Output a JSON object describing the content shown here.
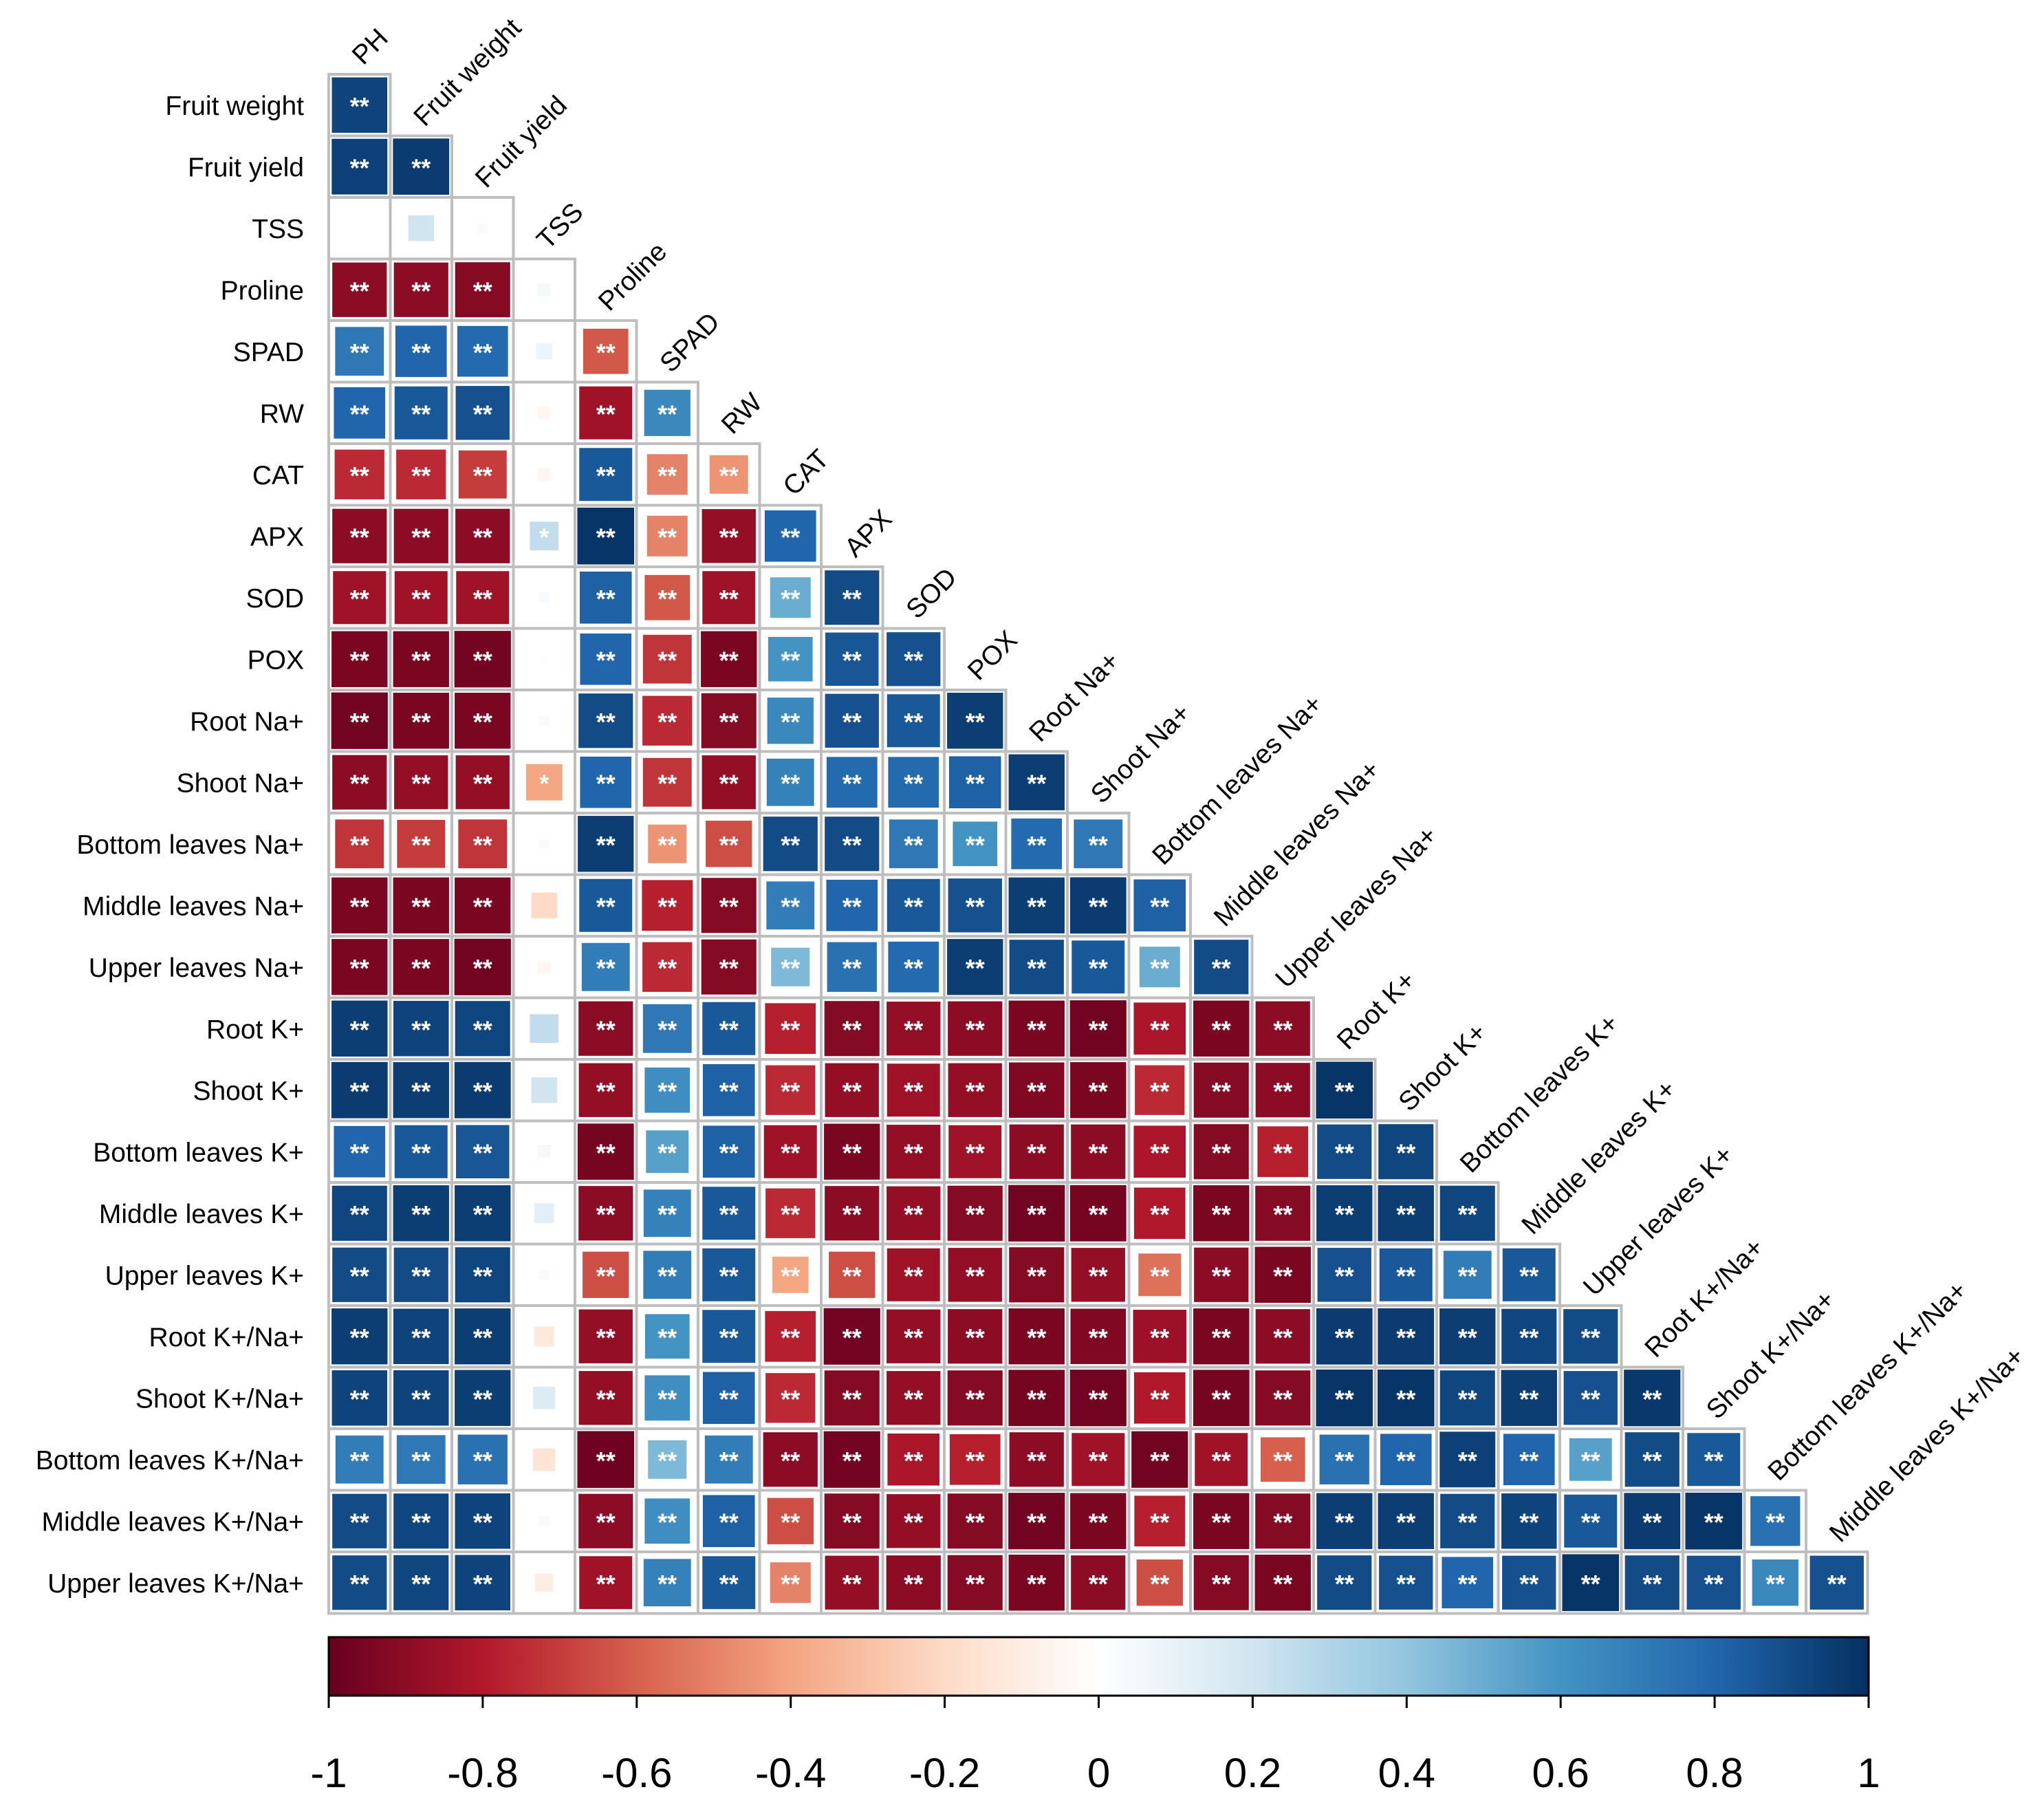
{
  "chart_data": {
    "type": "heatmap",
    "title": "",
    "variables": [
      "PH",
      "Fruit weight",
      "Fruit yield",
      "TSS",
      "Proline",
      "SPAD",
      "RW",
      "CAT",
      "APX",
      "SOD",
      "POX",
      "Root Na+",
      "Shoot Na+",
      "Bottom leaves Na+",
      "Middle leaves Na+",
      "Upper leaves Na+",
      "Root K+",
      "Shoot K+",
      "Bottom leaves K+",
      "Middle leaves K+",
      "Upper leaves K+",
      "Root K+/Na+",
      "Shoot K+/Na+",
      "Bottom leaves K+/Na+",
      "Middle leaves K+/Na+",
      "Upper leaves K+/Na+"
    ],
    "row_labels": [
      "Fruit weight",
      "Fruit yield",
      "TSS",
      "Proline",
      "SPAD",
      "RW",
      "CAT",
      "APX",
      "SOD",
      "POX",
      "Root Na+",
      "Shoot Na+",
      "Bottom leaves Na+",
      "Middle leaves Na+",
      "Upper leaves Na+",
      "Root K+",
      "Shoot K+",
      "Bottom leaves K+",
      "Middle leaves K+",
      "Upper leaves K+",
      "Root K+/Na+",
      "Shoot K+/Na+",
      "Bottom leaves K+/Na+",
      "Middle leaves K+/Na+",
      "Upper leaves K+/Na+"
    ],
    "column_labels": [
      "PH",
      "Fruit weight",
      "Fruit yield",
      "TSS",
      "Proline",
      "SPAD",
      "RW",
      "CAT",
      "APX",
      "SOD",
      "POX",
      "Root Na+",
      "Shoot Na+",
      "Bottom leaves Na+",
      "Middle leaves Na+",
      "Upper leaves Na+",
      "Root K+",
      "Shoot K+",
      "Bottom leaves K+",
      "Middle leaves K+",
      "Upper leaves K+",
      "Root K+/Na+",
      "Shoot K+/Na+",
      "Bottom leaves K+/Na+",
      "Middle leaves K+/Na+"
    ],
    "values": [
      [
        0.93
      ],
      [
        0.94,
        0.96
      ],
      [
        0.01,
        0.2,
        0.03
      ],
      [
        -0.9,
        -0.9,
        -0.92,
        0.05
      ],
      [
        0.72,
        0.8,
        0.78,
        0.08,
        -0.62
      ],
      [
        0.8,
        0.85,
        0.88,
        -0.05,
        -0.85,
        0.65
      ],
      [
        -0.75,
        -0.75,
        -0.7,
        -0.05,
        0.85,
        -0.5,
        -0.45
      ],
      [
        -0.9,
        -0.9,
        -0.9,
        0.25,
        0.98,
        -0.5,
        -0.88,
        0.8
      ],
      [
        -0.85,
        -0.85,
        -0.85,
        0.03,
        0.82,
        -0.62,
        -0.85,
        0.5,
        0.9
      ],
      [
        -0.95,
        -0.95,
        -0.97,
        0.02,
        0.8,
        -0.72,
        -0.95,
        0.6,
        0.86,
        0.88
      ],
      [
        -0.97,
        -0.95,
        -0.95,
        0.03,
        0.9,
        -0.75,
        -0.92,
        0.65,
        0.88,
        0.85,
        0.95
      ],
      [
        -0.9,
        -0.88,
        -0.88,
        -0.4,
        0.8,
        -0.72,
        -0.88,
        0.68,
        0.78,
        0.78,
        0.82,
        0.95
      ],
      [
        -0.72,
        -0.7,
        -0.72,
        0.03,
        0.95,
        -0.45,
        -0.65,
        0.9,
        0.9,
        0.72,
        0.6,
        0.78,
        0.72
      ],
      [
        -0.95,
        -0.95,
        -0.95,
        -0.2,
        0.85,
        -0.78,
        -0.92,
        0.7,
        0.8,
        0.85,
        0.88,
        0.95,
        0.96,
        0.82
      ],
      [
        -0.95,
        -0.95,
        -0.97,
        -0.05,
        0.7,
        -0.75,
        -0.92,
        0.45,
        0.75,
        0.78,
        0.95,
        0.9,
        0.85,
        0.5,
        0.9
      ],
      [
        0.95,
        0.93,
        0.92,
        0.25,
        -0.9,
        0.72,
        0.85,
        -0.78,
        -0.92,
        -0.88,
        -0.9,
        -0.95,
        -0.97,
        -0.82,
        -0.95,
        -0.9
      ],
      [
        0.96,
        0.95,
        0.96,
        0.2,
        -0.88,
        0.62,
        0.82,
        -0.75,
        -0.88,
        -0.85,
        -0.88,
        -0.93,
        -0.95,
        -0.75,
        -0.92,
        -0.9,
        0.98
      ],
      [
        0.8,
        0.85,
        0.86,
        0.05,
        -0.96,
        0.55,
        0.82,
        -0.85,
        -0.95,
        -0.88,
        -0.85,
        -0.9,
        -0.9,
        -0.82,
        -0.92,
        -0.78,
        0.9,
        0.92
      ],
      [
        0.92,
        0.95,
        0.95,
        0.12,
        -0.9,
        0.68,
        0.85,
        -0.75,
        -0.9,
        -0.88,
        -0.92,
        -0.97,
        -0.96,
        -0.8,
        -0.95,
        -0.92,
        0.95,
        0.95,
        0.92
      ],
      [
        0.9,
        0.9,
        0.92,
        0.03,
        -0.65,
        0.7,
        0.85,
        -0.4,
        -0.65,
        -0.85,
        -0.88,
        -0.92,
        -0.88,
        -0.55,
        -0.9,
        -0.95,
        0.88,
        0.85,
        0.7,
        0.85
      ],
      [
        0.95,
        0.93,
        0.95,
        -0.12,
        -0.88,
        0.6,
        0.85,
        -0.78,
        -0.97,
        -0.88,
        -0.9,
        -0.95,
        -0.93,
        -0.86,
        -0.95,
        -0.9,
        0.96,
        0.96,
        0.95,
        0.92,
        0.9
      ],
      [
        0.93,
        0.93,
        0.95,
        0.15,
        -0.88,
        0.62,
        0.82,
        -0.75,
        -0.92,
        -0.88,
        -0.92,
        -0.96,
        -0.97,
        -0.8,
        -0.96,
        -0.92,
        0.98,
        0.98,
        0.92,
        0.95,
        0.88,
        0.97
      ],
      [
        0.7,
        0.72,
        0.75,
        -0.15,
        -0.98,
        0.45,
        0.7,
        -0.9,
        -0.97,
        -0.82,
        -0.78,
        -0.9,
        -0.85,
        -0.97,
        -0.85,
        -0.6,
        0.75,
        0.8,
        0.94,
        0.8,
        0.55,
        0.9,
        0.85
      ],
      [
        0.9,
        0.92,
        0.93,
        0.03,
        -0.9,
        0.62,
        0.82,
        -0.65,
        -0.92,
        -0.88,
        -0.92,
        -0.97,
        -0.95,
        -0.78,
        -0.95,
        -0.92,
        0.95,
        0.95,
        0.9,
        0.93,
        0.85,
        0.96,
        0.98,
        0.75
      ],
      [
        0.9,
        0.92,
        0.93,
        -0.1,
        -0.85,
        0.68,
        0.85,
        -0.5,
        -0.88,
        -0.9,
        -0.92,
        -0.95,
        -0.9,
        -0.65,
        -0.92,
        -0.95,
        0.9,
        0.88,
        0.8,
        0.88,
        0.98,
        0.9,
        0.88,
        0.65,
        0.88
      ]
    ],
    "significance": [
      [
        "**"
      ],
      [
        "**",
        "**"
      ],
      [
        "",
        "",
        ""
      ],
      [
        "**",
        "**",
        "**",
        ""
      ],
      [
        "**",
        "**",
        "**",
        "",
        "**"
      ],
      [
        "**",
        "**",
        "**",
        "",
        "**",
        "**"
      ],
      [
        "**",
        "**",
        "**",
        "",
        "**",
        "**",
        "**"
      ],
      [
        "**",
        "**",
        "**",
        "*",
        "**",
        "**",
        "**",
        "**"
      ],
      [
        "**",
        "**",
        "**",
        "",
        "**",
        "**",
        "**",
        "**",
        "**"
      ],
      [
        "**",
        "**",
        "**",
        "",
        "**",
        "**",
        "**",
        "**",
        "**",
        "**"
      ],
      [
        "**",
        "**",
        "**",
        "",
        "**",
        "**",
        "**",
        "**",
        "**",
        "**",
        "**"
      ],
      [
        "**",
        "**",
        "**",
        "*",
        "**",
        "**",
        "**",
        "**",
        "**",
        "**",
        "**",
        "**"
      ],
      [
        "**",
        "**",
        "**",
        "",
        "**",
        "**",
        "**",
        "**",
        "**",
        "**",
        "**",
        "**",
        "**"
      ],
      [
        "**",
        "**",
        "**",
        "",
        "**",
        "**",
        "**",
        "**",
        "**",
        "**",
        "**",
        "**",
        "**",
        "**"
      ],
      [
        "**",
        "**",
        "**",
        "",
        "**",
        "**",
        "**",
        "**",
        "**",
        "**",
        "**",
        "**",
        "**",
        "**",
        "**"
      ],
      [
        "**",
        "**",
        "**",
        "",
        "**",
        "**",
        "**",
        "**",
        "**",
        "**",
        "**",
        "**",
        "**",
        "**",
        "**",
        "**"
      ],
      [
        "**",
        "**",
        "**",
        "",
        "**",
        "**",
        "**",
        "**",
        "**",
        "**",
        "**",
        "**",
        "**",
        "**",
        "**",
        "**",
        "**"
      ],
      [
        "**",
        "**",
        "**",
        "",
        "**",
        "**",
        "**",
        "**",
        "**",
        "**",
        "**",
        "**",
        "**",
        "**",
        "**",
        "**",
        "**",
        "**"
      ],
      [
        "**",
        "**",
        "**",
        "",
        "**",
        "**",
        "**",
        "**",
        "**",
        "**",
        "**",
        "**",
        "**",
        "**",
        "**",
        "**",
        "**",
        "**",
        "**"
      ],
      [
        "**",
        "**",
        "**",
        "",
        "**",
        "**",
        "**",
        "**",
        "**",
        "**",
        "**",
        "**",
        "**",
        "**",
        "**",
        "**",
        "**",
        "**",
        "**",
        "**"
      ],
      [
        "**",
        "**",
        "**",
        "",
        "**",
        "**",
        "**",
        "**",
        "**",
        "**",
        "**",
        "**",
        "**",
        "**",
        "**",
        "**",
        "**",
        "**",
        "**",
        "**",
        "**"
      ],
      [
        "**",
        "**",
        "**",
        "",
        "**",
        "**",
        "**",
        "**",
        "**",
        "**",
        "**",
        "**",
        "**",
        "**",
        "**",
        "**",
        "**",
        "**",
        "**",
        "**",
        "**",
        "**"
      ],
      [
        "**",
        "**",
        "**",
        "",
        "**",
        "**",
        "**",
        "**",
        "**",
        "**",
        "**",
        "**",
        "**",
        "**",
        "**",
        "**",
        "**",
        "**",
        "**",
        "**",
        "**",
        "**",
        "**"
      ],
      [
        "**",
        "**",
        "**",
        "",
        "**",
        "**",
        "**",
        "**",
        "**",
        "**",
        "**",
        "**",
        "**",
        "**",
        "**",
        "**",
        "**",
        "**",
        "**",
        "**",
        "**",
        "**",
        "**",
        "**"
      ],
      [
        "**",
        "**",
        "**",
        "",
        "**",
        "**",
        "**",
        "**",
        "**",
        "**",
        "**",
        "**",
        "**",
        "**",
        "**",
        "**",
        "**",
        "**",
        "**",
        "**",
        "**",
        "**",
        "**",
        "**",
        "**"
      ]
    ],
    "colorbar": {
      "range": [
        -1,
        1
      ],
      "ticks": [
        -1,
        -0.8,
        -0.6,
        -0.4,
        -0.2,
        0,
        0.2,
        0.4,
        0.6,
        0.8,
        1
      ],
      "tick_labels": [
        "-1",
        "-0.8",
        "-0.6",
        "-0.4",
        "-0.2",
        "0",
        "0.2",
        "0.4",
        "0.6",
        "0.8",
        "1"
      ],
      "stops": [
        "#67001F",
        "#B2182B",
        "#D6604D",
        "#F4A582",
        "#FDDBC7",
        "#FFFFFF",
        "#D1E5F0",
        "#92C5DE",
        "#4393C3",
        "#2166AC",
        "#053061"
      ],
      "legend_position": "bottom"
    },
    "grid_color": "#BEBEBE",
    "marker_color": "#FFFFFF"
  }
}
